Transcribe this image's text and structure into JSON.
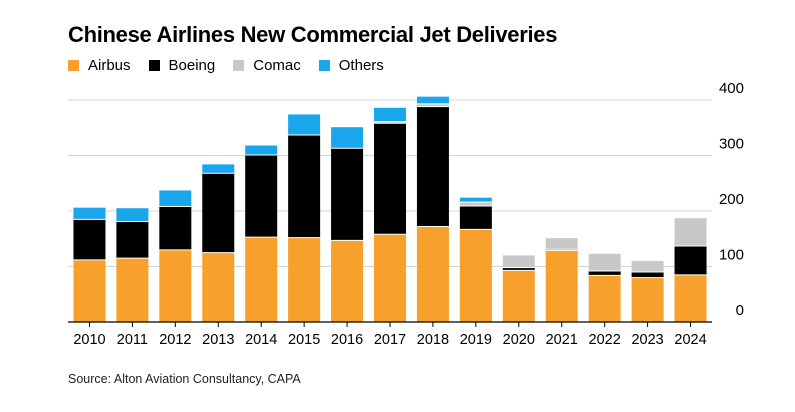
{
  "title": "Chinese Airlines New Commercial Jet Deliveries",
  "source": "Source: Alton Aviation Consultancy, CAPA",
  "colors": {
    "Airbus": "#f7a02b",
    "Boeing": "#000000",
    "Comac": "#c8c8c8",
    "Others": "#1aa6ea"
  },
  "chart_data": {
    "type": "bar",
    "stacked": true,
    "title": "Chinese Airlines New Commercial Jet Deliveries",
    "xlabel": "",
    "ylabel": "",
    "ylim": [
      0,
      400
    ],
    "yticks": [
      "400",
      "300",
      "200",
      "100",
      "0"
    ],
    "grid": true,
    "legend_position": "top-left",
    "categories": [
      "2010",
      "2011",
      "2012",
      "2013",
      "2014",
      "2015",
      "2016",
      "2017",
      "2018",
      "2019",
      "2020",
      "2021",
      "2022",
      "2023",
      "2024"
    ],
    "series": [
      {
        "name": "Airbus",
        "values": [
          112,
          115,
          130,
          125,
          153,
          152,
          147,
          158,
          172,
          167,
          93,
          129,
          84,
          80,
          85
        ]
      },
      {
        "name": "Boeing",
        "values": [
          73,
          66,
          78,
          143,
          148,
          185,
          166,
          200,
          216,
          42,
          5,
          2,
          8,
          10,
          52
        ]
      },
      {
        "name": "Comac",
        "values": [
          0,
          0,
          0,
          0,
          0,
          0,
          0,
          3,
          5,
          7,
          22,
          20,
          31,
          20,
          50
        ]
      },
      {
        "name": "Others",
        "values": [
          21,
          24,
          29,
          16,
          17,
          37,
          38,
          25,
          13,
          8,
          0,
          0,
          0,
          0,
          0
        ]
      }
    ]
  }
}
